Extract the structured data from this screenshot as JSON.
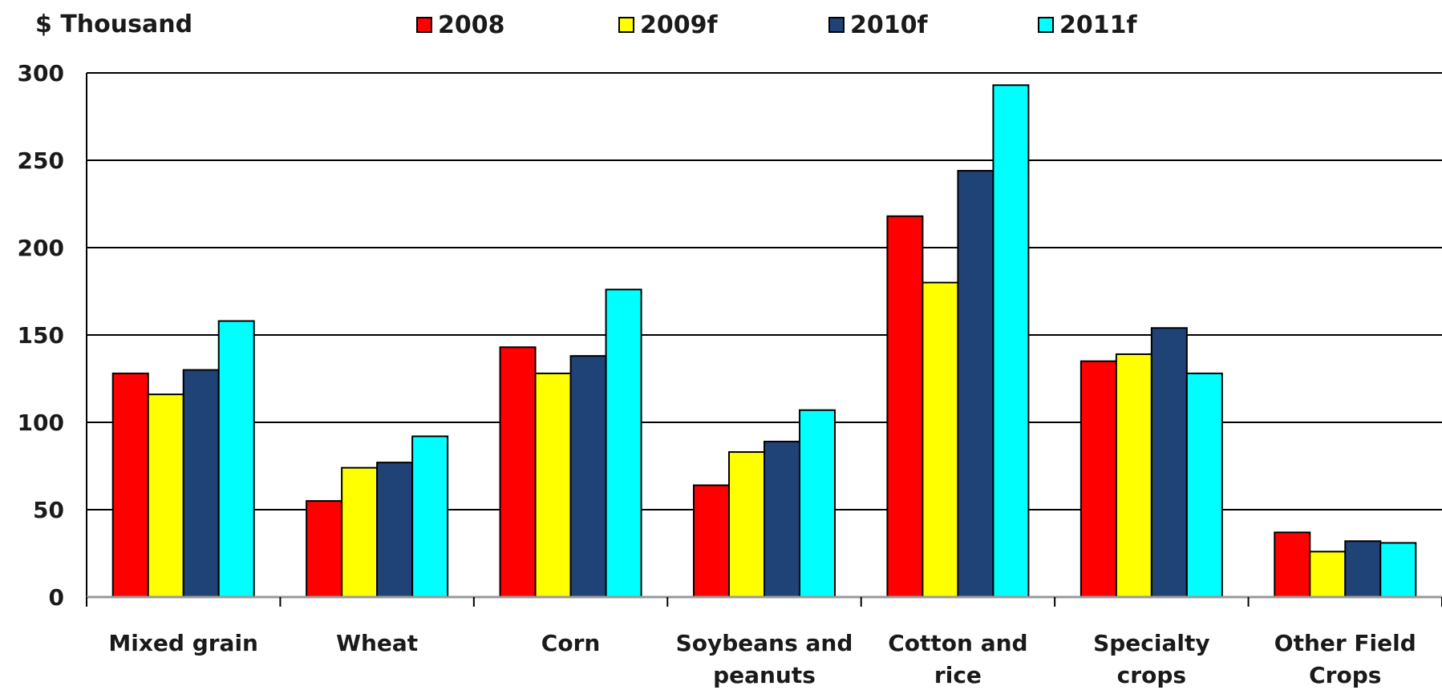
{
  "chart_data": {
    "type": "bar",
    "title": "",
    "ylabel": "$ Thousand",
    "xlabel": "",
    "ylim": [
      0,
      300
    ],
    "yticks": [
      0,
      50,
      100,
      150,
      200,
      250,
      300
    ],
    "grid": true,
    "legend_position": "top",
    "categories": [
      [
        "Mixed grain"
      ],
      [
        "Wheat"
      ],
      [
        "Corn"
      ],
      [
        "Soybeans and",
        "peanuts"
      ],
      [
        "Cotton and",
        "rice"
      ],
      [
        "Specialty",
        "crops"
      ],
      [
        "Other Field",
        "Crops"
      ]
    ],
    "series": [
      {
        "name": "2008",
        "color": "#ff0000",
        "values": [
          128,
          55,
          143,
          64,
          218,
          135,
          37
        ]
      },
      {
        "name": "2009f",
        "color": "#ffff00",
        "values": [
          116,
          74,
          128,
          83,
          180,
          139,
          26
        ]
      },
      {
        "name": "2010f",
        "color": "#1f4277",
        "values": [
          130,
          77,
          138,
          89,
          244,
          154,
          32
        ]
      },
      {
        "name": "2011f",
        "color": "#00ffff",
        "values": [
          158,
          92,
          176,
          107,
          293,
          128,
          31
        ]
      }
    ]
  }
}
